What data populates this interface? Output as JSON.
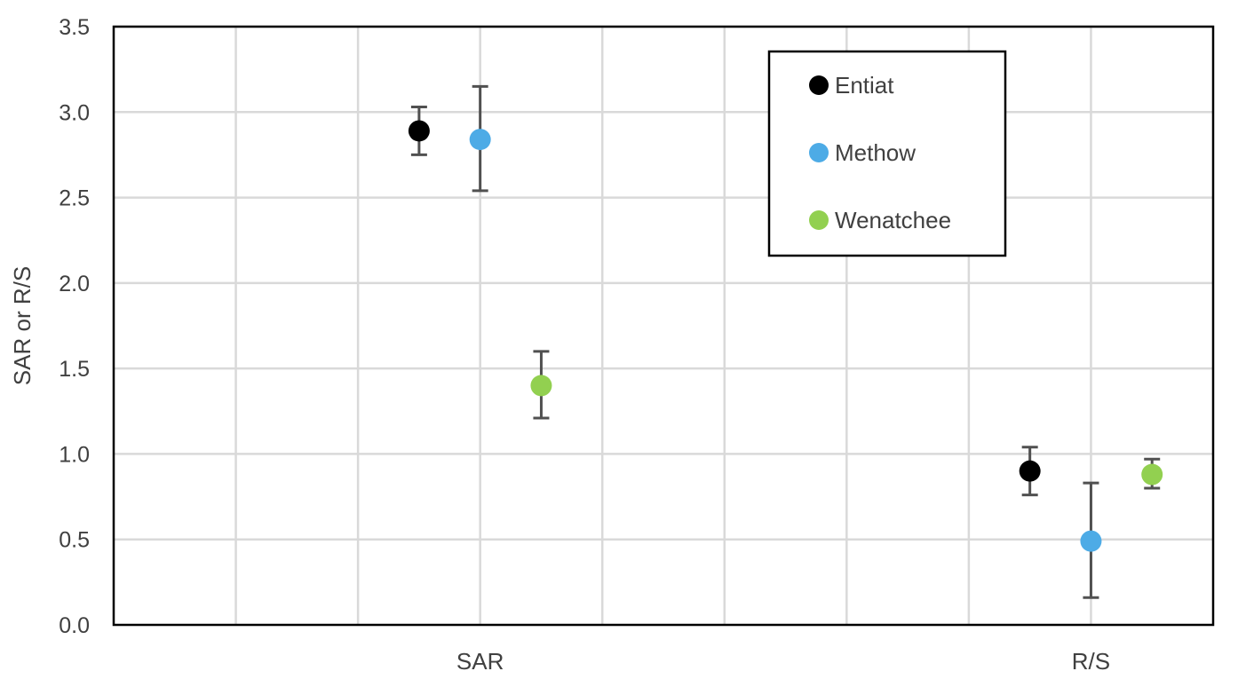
{
  "chart_data": {
    "type": "scatter",
    "title": "",
    "xlabel": "",
    "ylabel": "SAR or R/S",
    "categories": [
      "SAR",
      "R/S"
    ],
    "ylim": [
      0,
      3.5
    ],
    "yticks": [
      "0.0",
      "0.5",
      "1.0",
      "1.5",
      "2.0",
      "2.5",
      "3.0",
      "3.5"
    ],
    "grid": true,
    "legend_position": "top-right",
    "series": [
      {
        "name": "Entiat",
        "color": "#000000",
        "points": [
          {
            "category": "SAR",
            "value": 2.89,
            "err_low": 2.75,
            "err_high": 3.03
          },
          {
            "category": "R/S",
            "value": 0.9,
            "err_low": 0.76,
            "err_high": 1.04
          }
        ]
      },
      {
        "name": "Methow",
        "color": "#4dabe6",
        "points": [
          {
            "category": "SAR",
            "value": 2.84,
            "err_low": 2.54,
            "err_high": 3.15
          },
          {
            "category": "R/S",
            "value": 0.49,
            "err_low": 0.16,
            "err_high": 0.83
          }
        ]
      },
      {
        "name": "Wenatchee",
        "color": "#92d050",
        "points": [
          {
            "category": "SAR",
            "value": 1.4,
            "err_low": 1.21,
            "err_high": 1.6
          },
          {
            "category": "R/S",
            "value": 0.88,
            "err_low": 0.8,
            "err_high": 0.97
          }
        ]
      }
    ]
  }
}
